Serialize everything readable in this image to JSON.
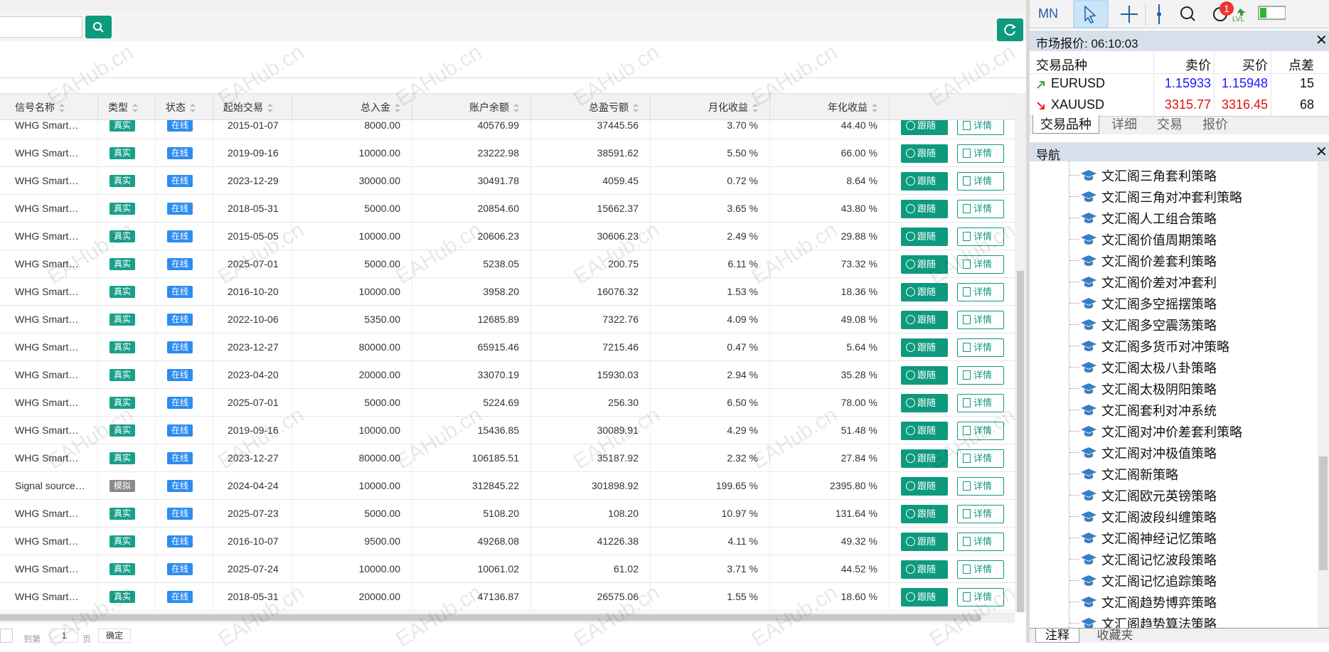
{
  "table": {
    "headers": [
      "信号名称",
      "类型",
      "状态",
      "起始交易",
      "总入金",
      "账户余额",
      "总盈亏额",
      "月化收益",
      "年化收益"
    ],
    "rows": [
      [
        "WHG Smart…",
        "真实",
        "在线",
        "2015-01-07",
        "8000.00",
        "40576.99",
        "37445.56",
        "3.70 %",
        "44.40 %"
      ],
      [
        "WHG Smart…",
        "真实",
        "在线",
        "2019-09-16",
        "10000.00",
        "23222.98",
        "38591.62",
        "5.50 %",
        "66.00 %"
      ],
      [
        "WHG Smart…",
        "真实",
        "在线",
        "2023-12-29",
        "30000.00",
        "30491.78",
        "4059.45",
        "0.72 %",
        "8.64 %"
      ],
      [
        "WHG Smart…",
        "真实",
        "在线",
        "2018-05-31",
        "5000.00",
        "20854.60",
        "15662.37",
        "3.65 %",
        "43.80 %"
      ],
      [
        "WHG Smart…",
        "真实",
        "在线",
        "2015-05-05",
        "10000.00",
        "20606.23",
        "30606.23",
        "2.49 %",
        "29.88 %"
      ],
      [
        "WHG Smart…",
        "真实",
        "在线",
        "2025-07-01",
        "5000.00",
        "5238.05",
        "200.75",
        "6.11 %",
        "73.32 %"
      ],
      [
        "WHG Smart…",
        "真实",
        "在线",
        "2016-10-20",
        "10000.00",
        "3958.20",
        "16076.32",
        "1.53 %",
        "18.36 %"
      ],
      [
        "WHG Smart…",
        "真实",
        "在线",
        "2022-10-06",
        "5350.00",
        "12685.89",
        "7322.76",
        "4.09 %",
        "49.08 %"
      ],
      [
        "WHG Smart…",
        "真实",
        "在线",
        "2023-12-27",
        "80000.00",
        "65915.46",
        "7215.46",
        "0.47 %",
        "5.64 %"
      ],
      [
        "WHG Smart…",
        "真实",
        "在线",
        "2023-04-20",
        "20000.00",
        "33070.19",
        "15930.03",
        "2.94 %",
        "35.28 %"
      ],
      [
        "WHG Smart…",
        "真实",
        "在线",
        "2025-07-01",
        "5000.00",
        "5224.69",
        "256.30",
        "6.50 %",
        "78.00 %"
      ],
      [
        "WHG Smart…",
        "真实",
        "在线",
        "2019-09-16",
        "10000.00",
        "15436.85",
        "30089.91",
        "4.29 %",
        "51.48 %"
      ],
      [
        "WHG Smart…",
        "真实",
        "在线",
        "2023-12-27",
        "80000.00",
        "106185.51",
        "35187.92",
        "2.32 %",
        "27.84 %"
      ],
      [
        "Signal source…",
        "模拟",
        "在线",
        "2024-04-24",
        "10000.00",
        "312845.22",
        "301898.92",
        "199.65 %",
        "2395.80 %"
      ],
      [
        "WHG Smart…",
        "真实",
        "在线",
        "2025-07-23",
        "5000.00",
        "5108.20",
        "108.20",
        "10.97 %",
        "131.64 %"
      ],
      [
        "WHG Smart…",
        "真实",
        "在线",
        "2016-10-07",
        "9500.00",
        "49268.08",
        "41226.38",
        "4.11 %",
        "49.32 %"
      ],
      [
        "WHG Smart…",
        "真实",
        "在线",
        "2025-07-24",
        "10000.00",
        "10061.02",
        "61.02",
        "3.71 %",
        "44.52 %"
      ],
      [
        "WHG Smart…",
        "真实",
        "在线",
        "2018-05-31",
        "20000.00",
        "47136.87",
        "26575.06",
        "1.55 %",
        "18.60 %"
      ]
    ]
  },
  "buttons": {
    "follow": "跟随",
    "detail": "详情"
  },
  "pagination": {
    "goto": "到第",
    "page": "1",
    "unit": "页",
    "confirm": "确定"
  },
  "watermark": "EAHub.cn",
  "terminal": {
    "timeframe": "MN",
    "badge": "1",
    "lvl": "LVL",
    "market_watch": {
      "title": "市场报价: 06:10:03",
      "headers": [
        "交易品种",
        "卖价",
        "买价",
        "点差"
      ],
      "rows": [
        [
          "EURUSD",
          "1.15933",
          "1.15948",
          "15"
        ],
        [
          "XAUUSD",
          "3315.77",
          "3316.45",
          "68"
        ]
      ],
      "tabs": [
        "交易品种",
        "详细",
        "交易",
        "报价"
      ]
    },
    "navigator": {
      "title": "导航",
      "items": [
        "文汇阁三角套利策略",
        "文汇阁三角对冲套利策略",
        "文汇阁人工组合策略",
        "文汇阁价值周期策略",
        "文汇阁价差套利策略",
        "文汇阁价差对冲套利",
        "文汇阁多空摇摆策略",
        "文汇阁多空震荡策略",
        "文汇阁多货币对冲策略",
        "文汇阁太极八卦策略",
        "文汇阁太极阴阳策略",
        "文汇阁套利对冲系统",
        "文汇阁对冲价差套利策略",
        "文汇阁对冲极值策略",
        "文汇阁新策略",
        "文汇阁欧元英镑策略",
        "文汇阁波段纠缠策略",
        "文汇阁神经记忆策略",
        "文汇阁记忆波段策略",
        "文汇阁记忆追踪策略",
        "文汇阁趋势博弈策略",
        "文汇阁趋势算法策略"
      ]
    },
    "bottom_tabs": [
      "注释",
      "收藏夹"
    ]
  }
}
